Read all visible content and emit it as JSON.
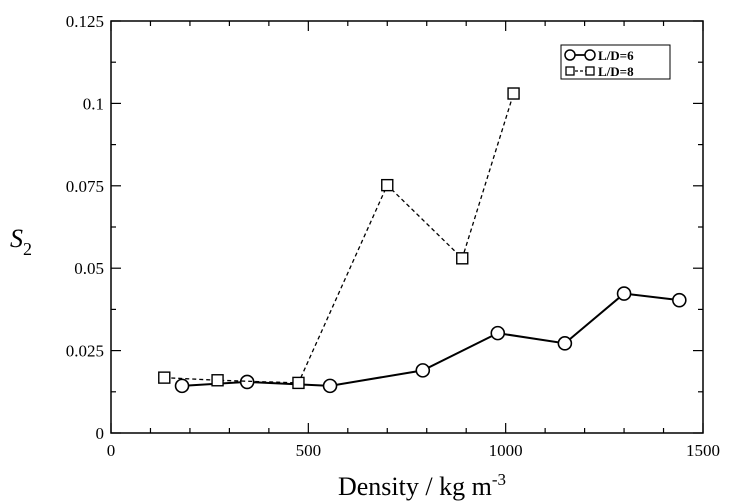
{
  "chart_data": {
    "type": "line",
    "xlabel": "Density / kg m",
    "xlabel_sup": "-3",
    "ylabel": "S",
    "ylabel_sub": "2",
    "xlim": [
      0,
      1500
    ],
    "ylim": [
      0,
      0.125
    ],
    "xticks": [
      "0",
      "500",
      "1000",
      "1500"
    ],
    "yticks": [
      "0",
      "0.025",
      "0.05",
      "0.075",
      "0.1",
      "0.125"
    ],
    "grid": false,
    "legend_position": "top-right",
    "series": [
      {
        "name": "L/D=6",
        "marker": "circle",
        "line_style": "solid",
        "x": [
          180,
          345,
          555,
          790,
          980,
          1150,
          1300,
          1440
        ],
        "y": [
          0.0143,
          0.0155,
          0.0143,
          0.019,
          0.0303,
          0.0272,
          0.0423,
          0.0403
        ]
      },
      {
        "name": "L/D=8",
        "marker": "square",
        "line_style": "dashed",
        "x": [
          135,
          270,
          475,
          700,
          890,
          1020
        ],
        "y": [
          0.0168,
          0.016,
          0.0152,
          0.0752,
          0.053,
          0.103
        ]
      }
    ]
  }
}
